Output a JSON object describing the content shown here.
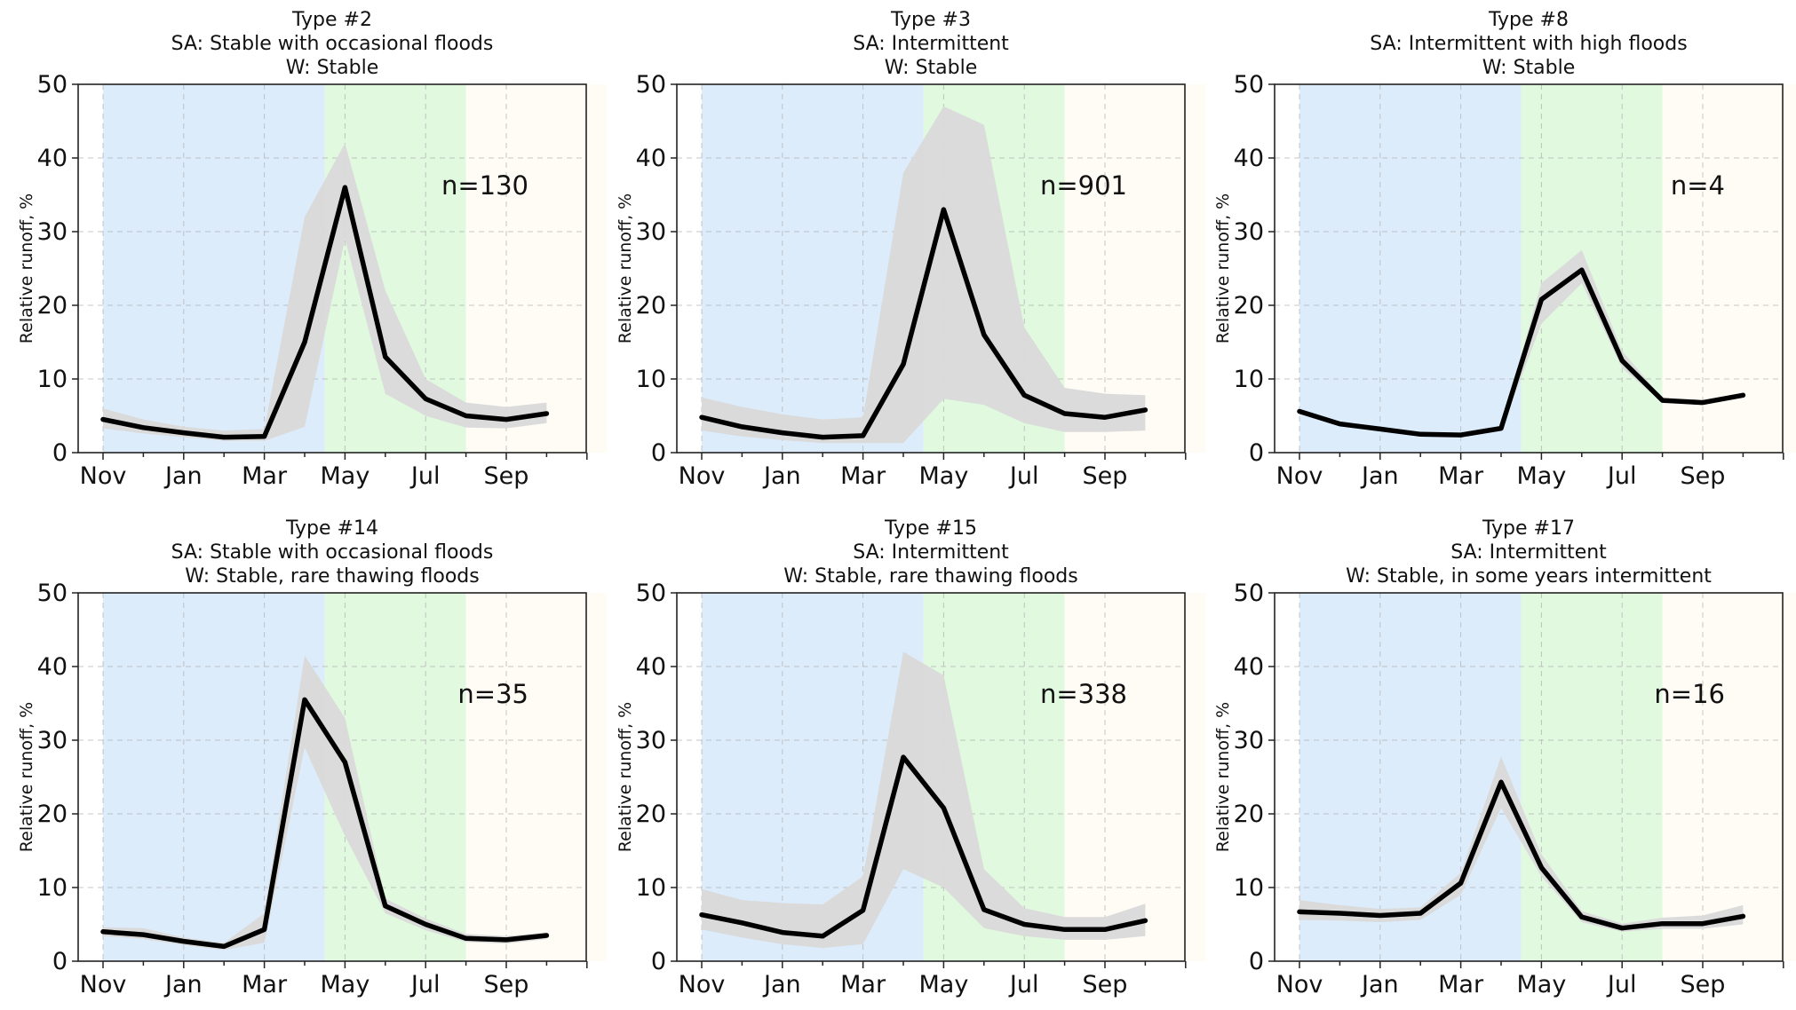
{
  "figure": {
    "colors": {
      "winter": "#dcecfb",
      "spring": "#e0f9df",
      "summer": "#fefcf5",
      "band": "#d9d9d9",
      "line": "#000000"
    }
  },
  "chart_data": [
    {
      "type": "line",
      "title_lines": [
        "Type #2",
        "SA: Stable with occasional floods",
        "W: Stable"
      ],
      "ylabel": "Relative runoff, %",
      "yticks": [
        "0",
        "10",
        "20",
        "30",
        "40",
        "50"
      ],
      "xtick_labels": [
        "Nov",
        "Jan",
        "Mar",
        "May",
        "Jul",
        "Sep"
      ],
      "ylim": [
        0,
        50
      ],
      "n_label": "n=130",
      "months": [
        "Nov",
        "Dec",
        "Jan",
        "Feb",
        "Mar",
        "Apr",
        "May",
        "Jun",
        "Jul",
        "Aug",
        "Sep",
        "Oct"
      ],
      "values": [
        4.5,
        3.4,
        2.7,
        2.1,
        2.2,
        15,
        36,
        13,
        7.3,
        5,
        4.5,
        5.3
      ],
      "upper": [
        6,
        4.5,
        3.5,
        3,
        3.2,
        32,
        42,
        22,
        10,
        6.8,
        6.2,
        6.8
      ],
      "lower": [
        3.3,
        2.6,
        2.1,
        1.6,
        1.6,
        3.5,
        29,
        8,
        5,
        3.4,
        3.3,
        4
      ]
    },
    {
      "type": "line",
      "title_lines": [
        "Type #3",
        "SA: Intermittent",
        "W: Stable"
      ],
      "ylabel": "Relative runoff, %",
      "yticks": [
        "0",
        "10",
        "20",
        "30",
        "40",
        "50"
      ],
      "xtick_labels": [
        "Nov",
        "Jan",
        "Mar",
        "May",
        "Jul",
        "Sep"
      ],
      "ylim": [
        0,
        50
      ],
      "n_label": "n=901",
      "months": [
        "Nov",
        "Dec",
        "Jan",
        "Feb",
        "Mar",
        "Apr",
        "May",
        "Jun",
        "Jul",
        "Aug",
        "Sep",
        "Oct"
      ],
      "values": [
        4.8,
        3.5,
        2.7,
        2.1,
        2.3,
        12,
        33,
        16,
        7.8,
        5.3,
        4.8,
        5.8
      ],
      "upper": [
        7.5,
        6.2,
        5.2,
        4.5,
        4.8,
        38,
        47,
        44.5,
        17,
        8.8,
        8,
        7.8
      ],
      "lower": [
        3,
        2.2,
        1.7,
        1.3,
        1.3,
        1.3,
        7.3,
        6.5,
        4,
        2.8,
        2.8,
        3
      ]
    },
    {
      "type": "line",
      "title_lines": [
        "Type #8",
        "SA: Intermittent with high floods",
        "W: Stable"
      ],
      "ylabel": "Relative runoff, %",
      "yticks": [
        "0",
        "10",
        "20",
        "30",
        "40",
        "50"
      ],
      "xtick_labels": [
        "Nov",
        "Jan",
        "Mar",
        "May",
        "Jul",
        "Sep"
      ],
      "ylim": [
        0,
        50
      ],
      "n_label": "n=4",
      "months": [
        "Nov",
        "Dec",
        "Jan",
        "Feb",
        "Mar",
        "Apr",
        "May",
        "Jun",
        "Jul",
        "Aug",
        "Sep",
        "Oct"
      ],
      "values": [
        5.6,
        3.9,
        3.2,
        2.5,
        2.4,
        3.3,
        20.8,
        24.8,
        12.5,
        7.1,
        6.8,
        7.8
      ],
      "upper": [
        5.9,
        4.1,
        3.4,
        2.7,
        2.6,
        3.6,
        23,
        27.5,
        13.8,
        7.4,
        7.1,
        8.1
      ],
      "lower": [
        5.3,
        3.7,
        3,
        2.3,
        2.2,
        3,
        17.5,
        23,
        11.5,
        6.8,
        6.5,
        7.5
      ]
    },
    {
      "type": "line",
      "title_lines": [
        "Type #14",
        "SA: Stable with occasional floods",
        "W: Stable, rare thawing floods"
      ],
      "ylabel": "Relative runoff, %",
      "yticks": [
        "0",
        "10",
        "20",
        "30",
        "40",
        "50"
      ],
      "xtick_labels": [
        "Nov",
        "Jan",
        "Mar",
        "May",
        "Jul",
        "Sep"
      ],
      "ylim": [
        0,
        50
      ],
      "n_label": "n=35",
      "months": [
        "Nov",
        "Dec",
        "Jan",
        "Feb",
        "Mar",
        "Apr",
        "May",
        "Jun",
        "Jul",
        "Aug",
        "Sep",
        "Oct"
      ],
      "values": [
        4,
        3.6,
        2.7,
        2,
        4.3,
        35.5,
        27,
        7.5,
        5,
        3.1,
        2.9,
        3.5
      ],
      "upper": [
        4.6,
        4.5,
        3.2,
        2.5,
        6.5,
        41.5,
        33,
        8.5,
        5.8,
        3.7,
        3.4,
        3.9
      ],
      "lower": [
        3.4,
        3,
        2.2,
        1.5,
        2.5,
        29,
        17,
        6.5,
        4.2,
        2.6,
        2.4,
        3
      ]
    },
    {
      "type": "line",
      "title_lines": [
        "Type #15",
        "SA: Intermittent",
        "W: Stable, rare thawing floods"
      ],
      "ylabel": "Relative runoff, %",
      "yticks": [
        "0",
        "10",
        "20",
        "30",
        "40",
        "50"
      ],
      "xtick_labels": [
        "Nov",
        "Jan",
        "Mar",
        "May",
        "Jul",
        "Sep"
      ],
      "ylim": [
        0,
        50
      ],
      "n_label": "n=338",
      "months": [
        "Nov",
        "Dec",
        "Jan",
        "Feb",
        "Mar",
        "Apr",
        "May",
        "Jun",
        "Jul",
        "Aug",
        "Sep",
        "Oct"
      ],
      "values": [
        6.3,
        5.2,
        3.9,
        3.4,
        6.9,
        27.7,
        20.8,
        7,
        5,
        4.3,
        4.3,
        5.5
      ],
      "upper": [
        9.8,
        8.3,
        7.9,
        7.7,
        11.5,
        42,
        38.8,
        12.5,
        7.2,
        6,
        6,
        7.8
      ],
      "lower": [
        4.3,
        3.2,
        2.3,
        1.8,
        2.3,
        12.5,
        10,
        4.5,
        3.4,
        2.9,
        2.9,
        3.4
      ]
    },
    {
      "type": "line",
      "title_lines": [
        "Type #17",
        "SA: Intermittent",
        "W: Stable, in some years intermittent"
      ],
      "ylabel": "Relative runoff, %",
      "yticks": [
        "0",
        "10",
        "20",
        "30",
        "40",
        "50"
      ],
      "xtick_labels": [
        "Nov",
        "Jan",
        "Mar",
        "May",
        "Jul",
        "Sep"
      ],
      "ylim": [
        0,
        50
      ],
      "n_label": "n=16",
      "months": [
        "Nov",
        "Dec",
        "Jan",
        "Feb",
        "Mar",
        "Apr",
        "May",
        "Jun",
        "Jul",
        "Aug",
        "Sep",
        "Oct"
      ],
      "values": [
        6.7,
        6.5,
        6.2,
        6.5,
        10.6,
        24.3,
        12.7,
        6,
        4.5,
        5.1,
        5.1,
        6.1
      ],
      "upper": [
        8.3,
        7.6,
        7.1,
        7.3,
        12,
        27.8,
        14.5,
        6.8,
        5.1,
        5.9,
        6.2,
        7.6
      ],
      "lower": [
        5.6,
        5.5,
        5.3,
        5.6,
        9,
        20.8,
        11.5,
        5.3,
        4,
        4.4,
        4.4,
        5
      ]
    }
  ]
}
